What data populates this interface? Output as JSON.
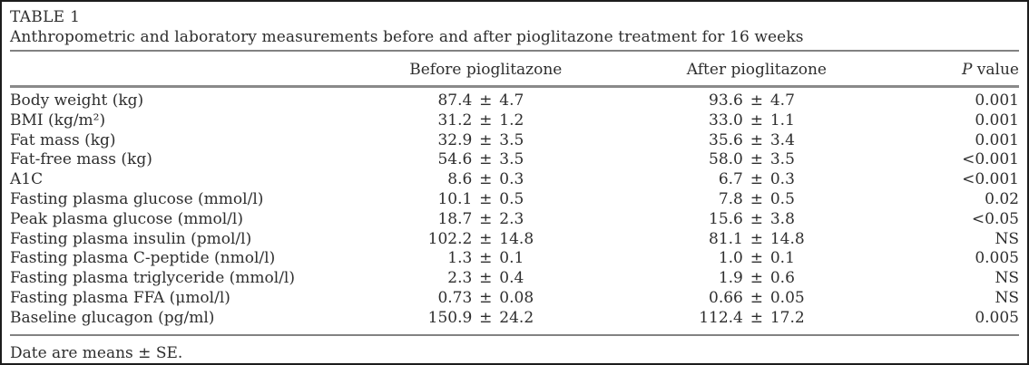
{
  "figure": {
    "title": "TABLE 1",
    "caption": "Anthropometric and laboratory measurements before and after pioglitazone treatment for 16 weeks",
    "footnote": "Date are means ± SE."
  },
  "table": {
    "columns": {
      "before": "Before pioglitazone",
      "after": "After pioglitazone",
      "p_italic": "P",
      "p_rest": " value"
    },
    "plus_minus": "±",
    "rows": [
      {
        "label": "Body weight (kg)",
        "before_mean": "87.4",
        "before_se": "4.7",
        "after_mean": "93.6",
        "after_se": "4.7",
        "p": "0.001"
      },
      {
        "label": "BMI (kg/m²)",
        "before_mean": "31.2",
        "before_se": "1.2",
        "after_mean": "33.0",
        "after_se": "1.1",
        "p": "0.001"
      },
      {
        "label": "Fat mass (kg)",
        "before_mean": "32.9",
        "before_se": "3.5",
        "after_mean": "35.6",
        "after_se": "3.4",
        "p": "0.001"
      },
      {
        "label": "Fat-free mass (kg)",
        "before_mean": "54.6",
        "before_se": "3.5",
        "after_mean": "58.0",
        "after_se": "3.5",
        "p": "<0.001"
      },
      {
        "label": "A1C",
        "before_mean": "8.6",
        "before_se": "0.3",
        "after_mean": "6.7",
        "after_se": "0.3",
        "p": "<0.001"
      },
      {
        "label": "Fasting plasma glucose (mmol/l)",
        "before_mean": "10.1",
        "before_se": "0.5",
        "after_mean": "7.8",
        "after_se": "0.5",
        "p": "0.02"
      },
      {
        "label": "Peak plasma glucose (mmol/l)",
        "before_mean": "18.7",
        "before_se": "2.3",
        "after_mean": "15.6",
        "after_se": "3.8",
        "p": "<0.05"
      },
      {
        "label": "Fasting plasma insulin (pmol/l)",
        "before_mean": "102.2",
        "before_se": "14.8",
        "after_mean": "81.1",
        "after_se": "14.8",
        "p": "NS"
      },
      {
        "label": "Fasting plasma C-peptide (nmol/l)",
        "before_mean": "1.3",
        "before_se": "0.1",
        "after_mean": "1.0",
        "after_se": "0.1",
        "p": "0.005"
      },
      {
        "label": "Fasting plasma triglyceride (mmol/l)",
        "before_mean": "2.3",
        "before_se": "0.4",
        "after_mean": "1.9",
        "after_se": "0.6",
        "p": "NS"
      },
      {
        "label": "Fasting plasma FFA (μmol/l)",
        "before_mean": "0.73",
        "before_se": "0.08",
        "after_mean": "0.66",
        "after_se": "0.05",
        "p": "NS"
      },
      {
        "label": "Baseline glucagon (pg/ml)",
        "before_mean": "150.9",
        "before_se": "24.2",
        "after_mean": "112.4",
        "after_se": "17.2",
        "p": "0.005"
      }
    ]
  },
  "colors": {
    "text": "#2e2e2e",
    "rule": "#828282",
    "border": "#1c1c1c",
    "background": "#ffffff"
  }
}
